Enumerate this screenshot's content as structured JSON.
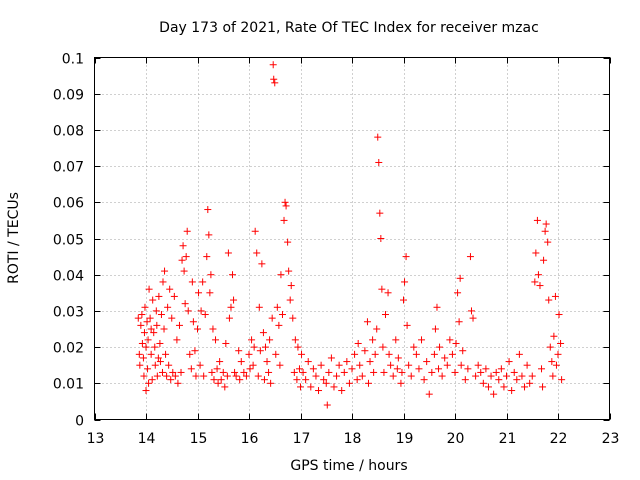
{
  "chart_data": {
    "type": "scatter",
    "title": "Day 173 of 2021, Rate Of TEC Index for receiver mzac",
    "xlabel": "GPS time / hours",
    "ylabel": "ROTI / TECUs",
    "xlim": [
      13,
      23
    ],
    "ylim": [
      0,
      0.1
    ],
    "xticks": [
      "13",
      "14",
      "15",
      "16",
      "17",
      "18",
      "19",
      "20",
      "21",
      "22",
      "23"
    ],
    "yticks": [
      "0",
      "0.01",
      "0.02",
      "0.03",
      "0.04",
      "0.05",
      "0.06",
      "0.07",
      "0.08",
      "0.09",
      "0.1"
    ],
    "grid": true,
    "marker": "+",
    "color": "#ff0000",
    "series": [
      {
        "name": "ROTI",
        "points": [
          [
            13.85,
            0.028
          ],
          [
            13.87,
            0.018
          ],
          [
            13.88,
            0.015
          ],
          [
            13.9,
            0.026
          ],
          [
            13.92,
            0.029
          ],
          [
            13.93,
            0.021
          ],
          [
            13.95,
            0.017
          ],
          [
            13.96,
            0.012
          ],
          [
            13.97,
            0.024
          ],
          [
            13.98,
            0.031
          ],
          [
            14.0,
            0.02
          ],
          [
            14.0,
            0.008
          ],
          [
            14.02,
            0.027
          ],
          [
            14.03,
            0.014
          ],
          [
            14.04,
            0.022
          ],
          [
            14.05,
            0.01
          ],
          [
            14.06,
            0.036
          ],
          [
            14.08,
            0.028
          ],
          [
            14.1,
            0.018
          ],
          [
            14.1,
            0.025
          ],
          [
            14.12,
            0.011
          ],
          [
            14.13,
            0.033
          ],
          [
            14.15,
            0.024
          ],
          [
            14.17,
            0.02
          ],
          [
            14.18,
            0.015
          ],
          [
            14.2,
            0.03
          ],
          [
            14.21,
            0.026
          ],
          [
            14.22,
            0.012
          ],
          [
            14.24,
            0.017
          ],
          [
            14.25,
            0.034
          ],
          [
            14.27,
            0.021
          ],
          [
            14.28,
            0.016
          ],
          [
            14.3,
            0.029
          ],
          [
            14.32,
            0.013
          ],
          [
            14.33,
            0.038
          ],
          [
            14.35,
            0.025
          ],
          [
            14.36,
            0.041
          ],
          [
            14.38,
            0.018
          ],
          [
            14.4,
            0.012
          ],
          [
            14.42,
            0.031
          ],
          [
            14.44,
            0.015
          ],
          [
            14.46,
            0.036
          ],
          [
            14.48,
            0.011
          ],
          [
            14.5,
            0.028
          ],
          [
            14.52,
            0.013
          ],
          [
            14.55,
            0.034
          ],
          [
            14.57,
            0.012
          ],
          [
            14.6,
            0.022
          ],
          [
            14.62,
            0.01
          ],
          [
            14.65,
            0.026
          ],
          [
            14.68,
            0.013
          ],
          [
            14.7,
            0.044
          ],
          [
            14.72,
            0.048
          ],
          [
            14.74,
            0.041
          ],
          [
            14.76,
            0.032
          ],
          [
            14.78,
            0.045
          ],
          [
            14.8,
            0.052
          ],
          [
            14.82,
            0.03
          ],
          [
            14.85,
            0.018
          ],
          [
            14.88,
            0.014
          ],
          [
            14.9,
            0.038
          ],
          [
            14.92,
            0.027
          ],
          [
            14.95,
            0.019
          ],
          [
            14.97,
            0.012
          ],
          [
            15.0,
            0.025
          ],
          [
            15.02,
            0.035
          ],
          [
            15.05,
            0.015
          ],
          [
            15.07,
            0.03
          ],
          [
            15.1,
            0.038
          ],
          [
            15.12,
            0.012
          ],
          [
            15.15,
            0.029
          ],
          [
            15.18,
            0.045
          ],
          [
            15.2,
            0.058
          ],
          [
            15.22,
            0.051
          ],
          [
            15.24,
            0.035
          ],
          [
            15.26,
            0.04
          ],
          [
            15.28,
            0.013
          ],
          [
            15.3,
            0.025
          ],
          [
            15.32,
            0.011
          ],
          [
            15.35,
            0.022
          ],
          [
            15.38,
            0.014
          ],
          [
            15.4,
            0.01
          ],
          [
            15.43,
            0.016
          ],
          [
            15.46,
            0.011
          ],
          [
            15.5,
            0.013
          ],
          [
            15.53,
            0.009
          ],
          [
            15.55,
            0.021
          ],
          [
            15.58,
            0.012
          ],
          [
            15.6,
            0.046
          ],
          [
            15.62,
            0.028
          ],
          [
            15.65,
            0.031
          ],
          [
            15.68,
            0.04
          ],
          [
            15.7,
            0.033
          ],
          [
            15.72,
            0.013
          ],
          [
            15.75,
            0.012
          ],
          [
            15.8,
            0.019
          ],
          [
            15.82,
            0.011
          ],
          [
            15.85,
            0.016
          ],
          [
            15.9,
            0.013
          ],
          [
            15.95,
            0.012
          ],
          [
            16.0,
            0.018
          ],
          [
            16.02,
            0.014
          ],
          [
            16.05,
            0.022
          ],
          [
            16.08,
            0.015
          ],
          [
            16.1,
            0.02
          ],
          [
            16.12,
            0.052
          ],
          [
            16.15,
            0.046
          ],
          [
            16.18,
            0.012
          ],
          [
            16.2,
            0.031
          ],
          [
            16.22,
            0.019
          ],
          [
            16.25,
            0.043
          ],
          [
            16.28,
            0.024
          ],
          [
            16.3,
            0.011
          ],
          [
            16.32,
            0.02
          ],
          [
            16.35,
            0.016
          ],
          [
            16.38,
            0.013
          ],
          [
            16.4,
            0.022
          ],
          [
            16.42,
            0.01
          ],
          [
            16.45,
            0.028
          ],
          [
            16.47,
            0.098
          ],
          [
            16.48,
            0.094
          ],
          [
            16.5,
            0.093
          ],
          [
            16.52,
            0.018
          ],
          [
            16.55,
            0.031
          ],
          [
            16.58,
            0.026
          ],
          [
            16.6,
            0.015
          ],
          [
            16.62,
            0.04
          ],
          [
            16.65,
            0.029
          ],
          [
            16.68,
            0.055
          ],
          [
            16.7,
            0.06
          ],
          [
            16.72,
            0.059
          ],
          [
            16.75,
            0.049
          ],
          [
            16.77,
            0.041
          ],
          [
            16.8,
            0.033
          ],
          [
            16.82,
            0.037
          ],
          [
            16.85,
            0.028
          ],
          [
            16.88,
            0.013
          ],
          [
            16.9,
            0.022
          ],
          [
            16.93,
            0.011
          ],
          [
            16.95,
            0.02
          ],
          [
            16.98,
            0.014
          ],
          [
            17.0,
            0.009
          ],
          [
            17.02,
            0.018
          ],
          [
            17.05,
            0.013
          ],
          [
            17.1,
            0.011
          ],
          [
            17.15,
            0.016
          ],
          [
            17.2,
            0.009
          ],
          [
            17.25,
            0.014
          ],
          [
            17.3,
            0.012
          ],
          [
            17.35,
            0.008
          ],
          [
            17.4,
            0.015
          ],
          [
            17.45,
            0.011
          ],
          [
            17.5,
            0.01
          ],
          [
            17.52,
            0.004
          ],
          [
            17.55,
            0.013
          ],
          [
            17.6,
            0.017
          ],
          [
            17.65,
            0.009
          ],
          [
            17.7,
            0.012
          ],
          [
            17.75,
            0.015
          ],
          [
            17.8,
            0.008
          ],
          [
            17.85,
            0.013
          ],
          [
            17.9,
            0.016
          ],
          [
            17.95,
            0.01
          ],
          [
            18.0,
            0.014
          ],
          [
            18.05,
            0.018
          ],
          [
            18.1,
            0.011
          ],
          [
            18.12,
            0.021
          ],
          [
            18.15,
            0.015
          ],
          [
            18.2,
            0.012
          ],
          [
            18.25,
            0.019
          ],
          [
            18.3,
            0.027
          ],
          [
            18.32,
            0.01
          ],
          [
            18.35,
            0.016
          ],
          [
            18.4,
            0.022
          ],
          [
            18.42,
            0.013
          ],
          [
            18.45,
            0.018
          ],
          [
            18.48,
            0.025
          ],
          [
            18.5,
            0.078
          ],
          [
            18.52,
            0.071
          ],
          [
            18.54,
            0.057
          ],
          [
            18.56,
            0.05
          ],
          [
            18.58,
            0.036
          ],
          [
            18.6,
            0.02
          ],
          [
            18.62,
            0.013
          ],
          [
            18.65,
            0.029
          ],
          [
            18.7,
            0.035
          ],
          [
            18.72,
            0.018
          ],
          [
            18.75,
            0.015
          ],
          [
            18.8,
            0.012
          ],
          [
            18.85,
            0.022
          ],
          [
            18.88,
            0.014
          ],
          [
            18.9,
            0.017
          ],
          [
            18.95,
            0.01
          ],
          [
            18.97,
            0.013
          ],
          [
            19.0,
            0.033
          ],
          [
            19.02,
            0.038
          ],
          [
            19.05,
            0.045
          ],
          [
            19.07,
            0.026
          ],
          [
            19.1,
            0.015
          ],
          [
            19.15,
            0.012
          ],
          [
            19.2,
            0.02
          ],
          [
            19.25,
            0.018
          ],
          [
            19.3,
            0.014
          ],
          [
            19.35,
            0.022
          ],
          [
            19.4,
            0.011
          ],
          [
            19.45,
            0.016
          ],
          [
            19.5,
            0.007
          ],
          [
            19.55,
            0.013
          ],
          [
            19.6,
            0.018
          ],
          [
            19.62,
            0.025
          ],
          [
            19.65,
            0.031
          ],
          [
            19.68,
            0.014
          ],
          [
            19.7,
            0.02
          ],
          [
            19.75,
            0.012
          ],
          [
            19.8,
            0.017
          ],
          [
            19.85,
            0.015
          ],
          [
            19.9,
            0.022
          ],
          [
            19.95,
            0.018
          ],
          [
            20.0,
            0.013
          ],
          [
            20.02,
            0.021
          ],
          [
            20.05,
            0.035
          ],
          [
            20.08,
            0.027
          ],
          [
            20.1,
            0.039
          ],
          [
            20.12,
            0.015
          ],
          [
            20.15,
            0.019
          ],
          [
            20.2,
            0.011
          ],
          [
            20.25,
            0.014
          ],
          [
            20.3,
            0.045
          ],
          [
            20.32,
            0.03
          ],
          [
            20.35,
            0.028
          ],
          [
            20.4,
            0.012
          ],
          [
            20.45,
            0.015
          ],
          [
            20.5,
            0.013
          ],
          [
            20.55,
            0.01
          ],
          [
            20.6,
            0.014
          ],
          [
            20.65,
            0.009
          ],
          [
            20.7,
            0.012
          ],
          [
            20.75,
            0.007
          ],
          [
            20.8,
            0.013
          ],
          [
            20.85,
            0.011
          ],
          [
            20.9,
            0.014
          ],
          [
            20.95,
            0.009
          ],
          [
            21.0,
            0.012
          ],
          [
            21.05,
            0.016
          ],
          [
            21.1,
            0.008
          ],
          [
            21.15,
            0.013
          ],
          [
            21.2,
            0.011
          ],
          [
            21.25,
            0.018
          ],
          [
            21.3,
            0.012
          ],
          [
            21.35,
            0.009
          ],
          [
            21.4,
            0.015
          ],
          [
            21.45,
            0.01
          ],
          [
            21.5,
            0.012
          ],
          [
            21.55,
            0.038
          ],
          [
            21.57,
            0.046
          ],
          [
            21.6,
            0.055
          ],
          [
            21.62,
            0.04
          ],
          [
            21.65,
            0.037
          ],
          [
            21.68,
            0.014
          ],
          [
            21.7,
            0.009
          ],
          [
            21.72,
            0.044
          ],
          [
            21.75,
            0.052
          ],
          [
            21.77,
            0.054
          ],
          [
            21.8,
            0.049
          ],
          [
            21.82,
            0.033
          ],
          [
            21.85,
            0.02
          ],
          [
            21.88,
            0.016
          ],
          [
            21.9,
            0.012
          ],
          [
            21.92,
            0.023
          ],
          [
            21.95,
            0.034
          ],
          [
            21.97,
            0.015
          ],
          [
            22.0,
            0.018
          ],
          [
            22.02,
            0.029
          ],
          [
            22.05,
            0.021
          ],
          [
            22.07,
            0.011
          ]
        ]
      }
    ]
  }
}
